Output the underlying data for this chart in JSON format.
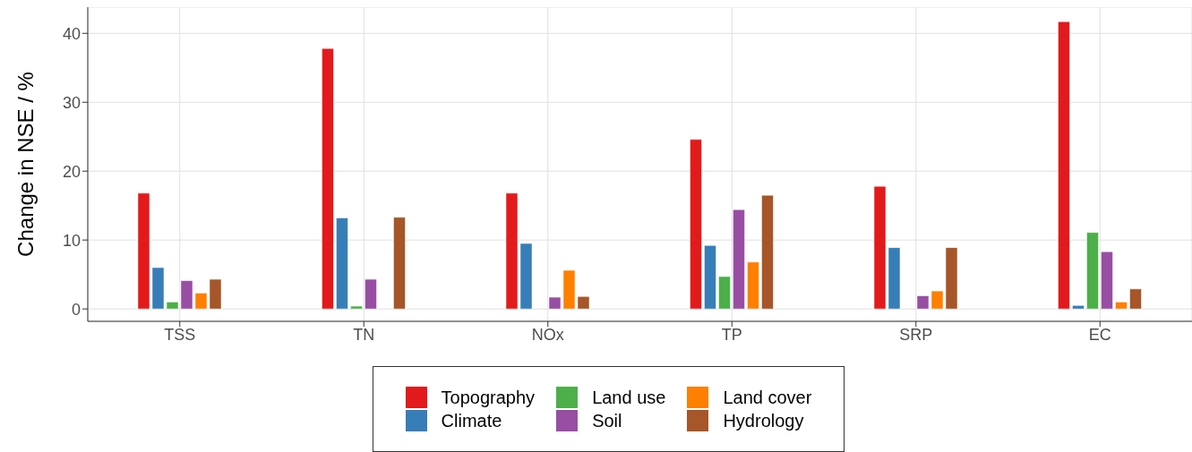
{
  "chart_data": {
    "type": "bar",
    "ylabel": "Change in NSE / %",
    "categories": [
      "TSS",
      "TN",
      "NOx",
      "TP",
      "SRP",
      "EC"
    ],
    "series": [
      {
        "name": "Topography",
        "color": "#e31a1c",
        "values": [
          16.8,
          37.8,
          16.8,
          24.6,
          17.8,
          41.7
        ]
      },
      {
        "name": "Climate",
        "color": "#377eb8",
        "values": [
          6.0,
          13.2,
          9.5,
          9.2,
          8.9,
          0.5
        ]
      },
      {
        "name": "Land use",
        "color": "#4daf4a",
        "values": [
          1.0,
          0.4,
          0,
          4.7,
          0,
          11.1
        ]
      },
      {
        "name": "Soil",
        "color": "#984ea3",
        "values": [
          4.1,
          4.3,
          1.7,
          14.4,
          1.9,
          8.3
        ]
      },
      {
        "name": "Land cover",
        "color": "#ff7f00",
        "values": [
          2.3,
          0,
          5.6,
          6.8,
          2.6,
          1.0
        ]
      },
      {
        "name": "Hydrology",
        "color": "#a65628",
        "values": [
          4.3,
          13.3,
          1.8,
          16.5,
          8.9,
          2.9
        ]
      }
    ],
    "ylim": [
      -1.8,
      43.8
    ],
    "yticks": [
      0,
      10,
      20,
      30,
      40
    ],
    "grid": true,
    "legend": "bottom"
  }
}
